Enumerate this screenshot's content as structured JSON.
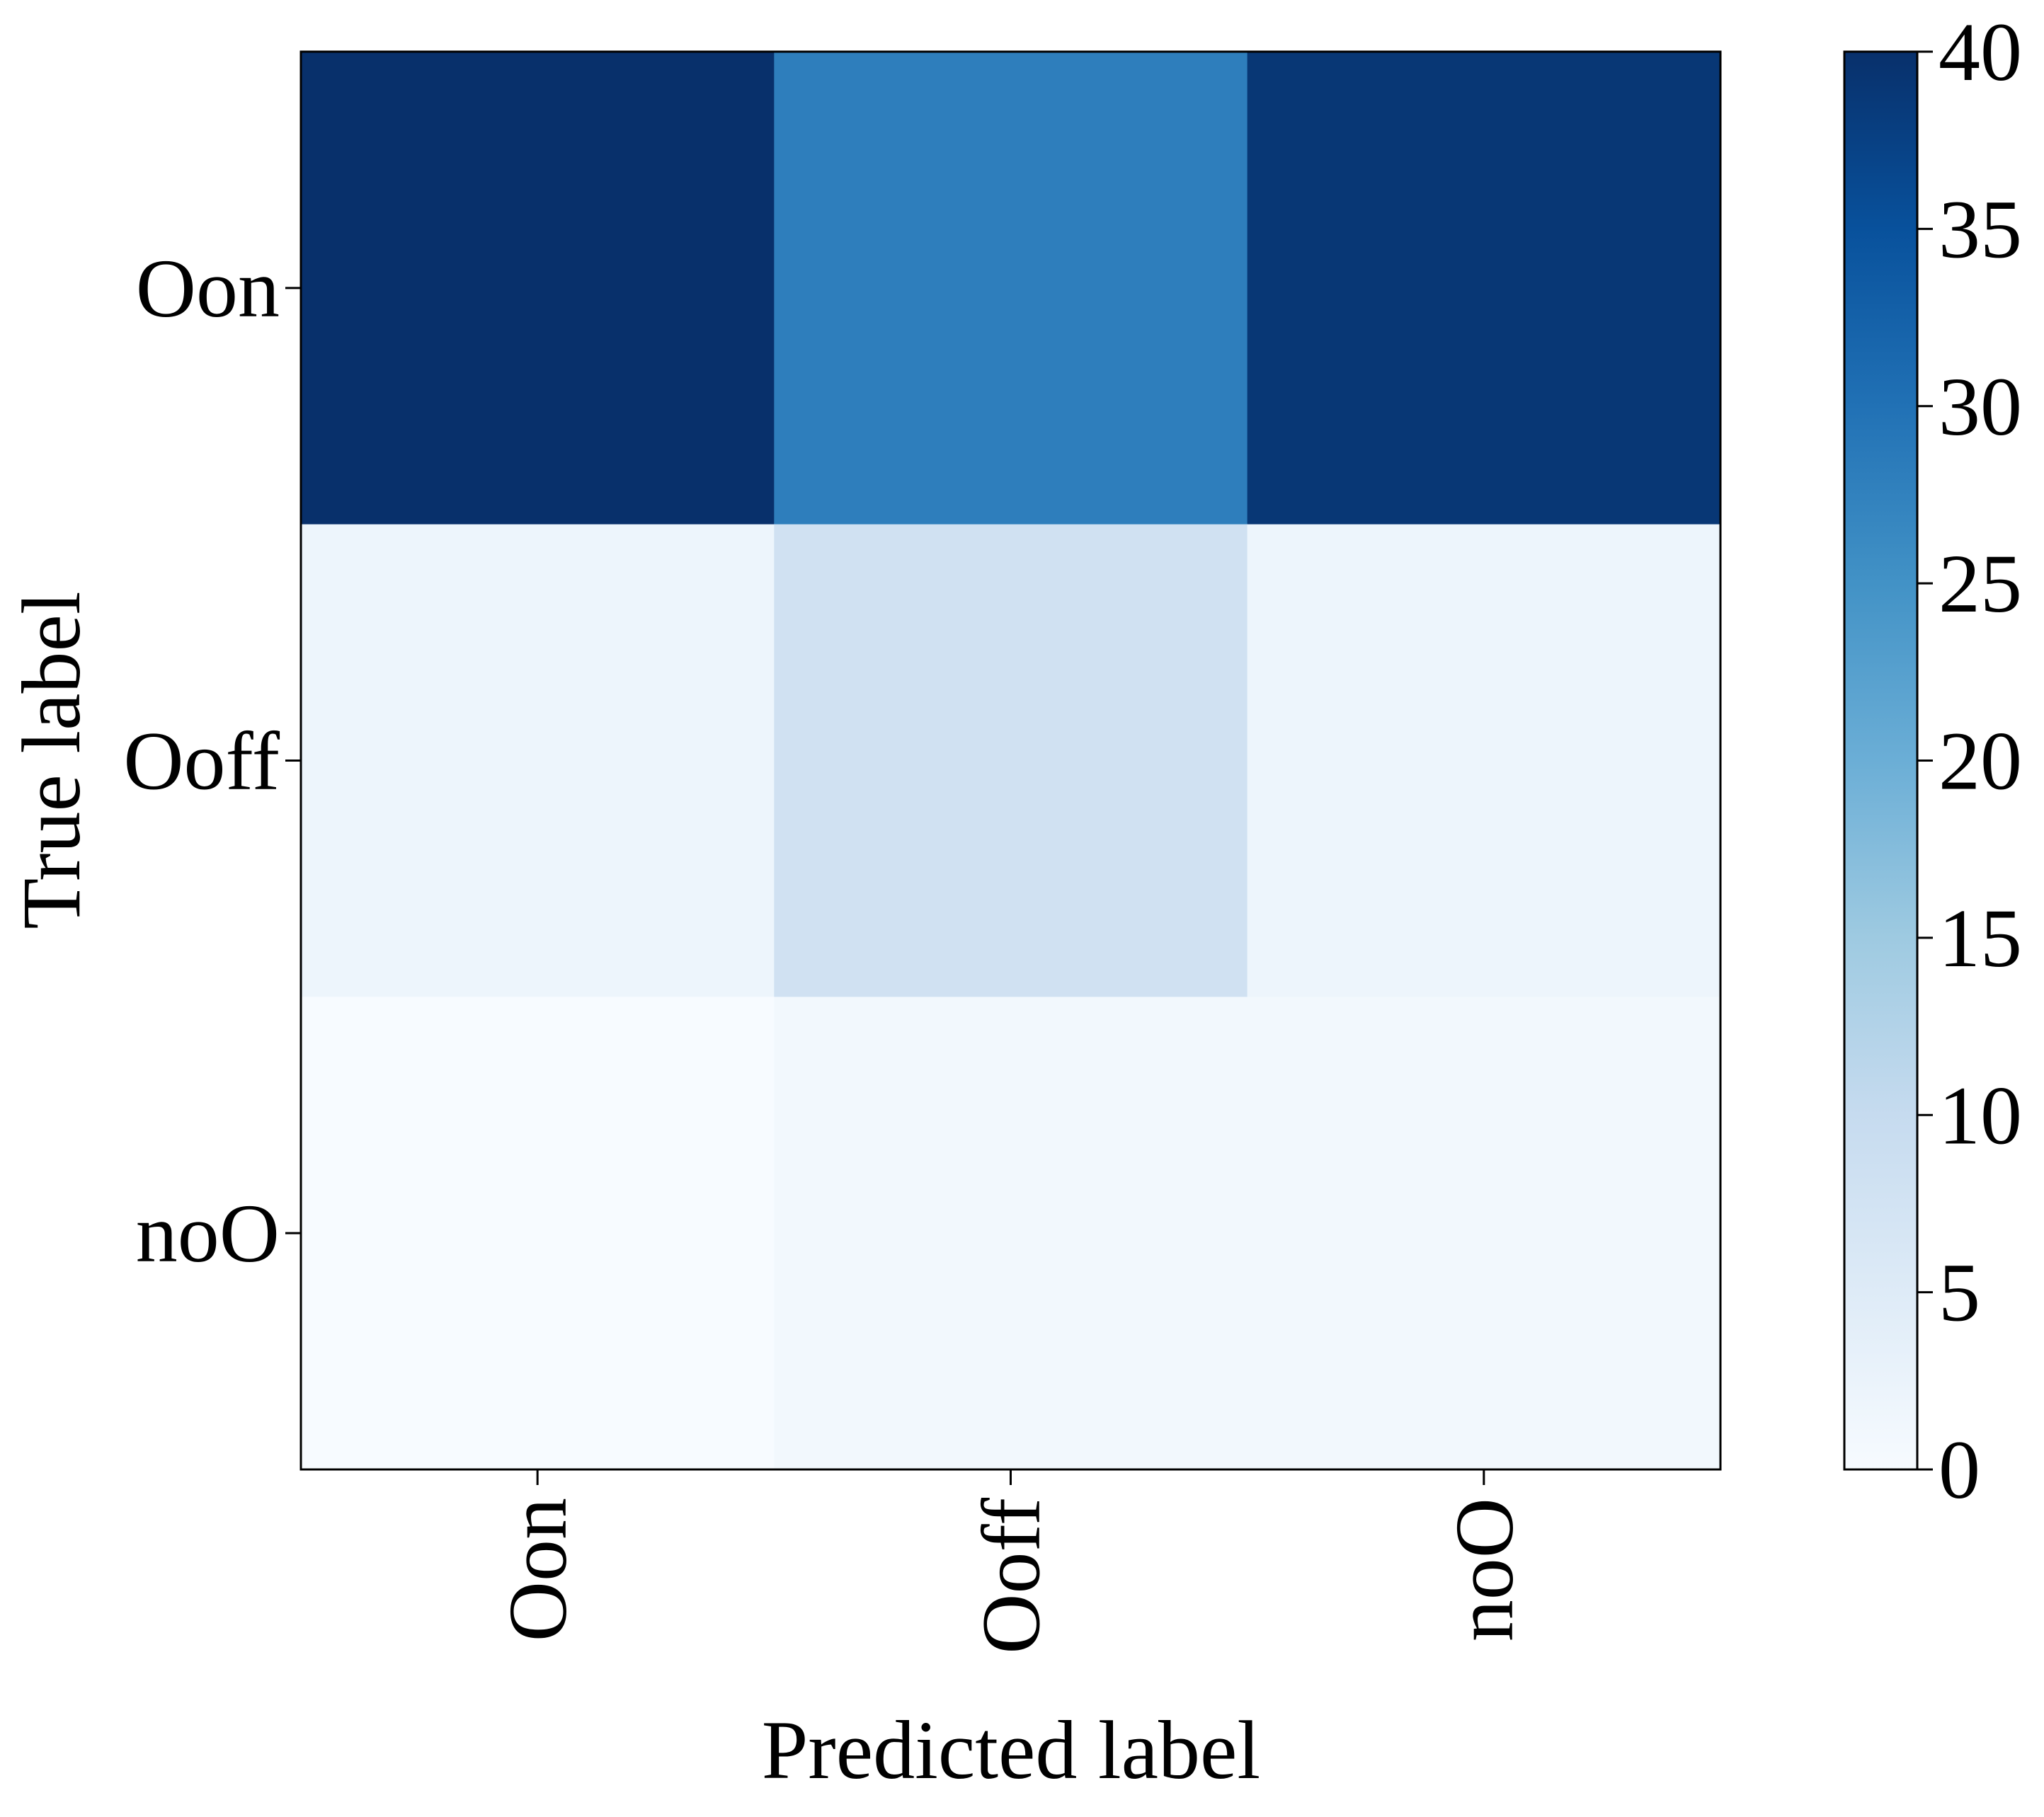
{
  "chart_data": {
    "type": "heatmap",
    "title": "",
    "xlabel": "Predicted label",
    "ylabel": "True label",
    "x_categories": [
      "Oon",
      "Ooff",
      "noO"
    ],
    "y_categories": [
      "Oon",
      "Ooff",
      "noO"
    ],
    "values": [
      [
        40,
        28,
        39
      ],
      [
        2,
        8,
        2
      ],
      [
        0,
        1,
        1
      ]
    ],
    "colormap": "Blues",
    "colorbar": {
      "min": 0,
      "max": 40,
      "ticks": [
        0,
        5,
        10,
        15,
        20,
        25,
        30,
        35,
        40
      ],
      "tick_labels": [
        "0",
        "5",
        "10",
        "15",
        "20",
        "25",
        "30",
        "35",
        "40"
      ]
    },
    "grid": false,
    "legend": "colorbar-right"
  }
}
